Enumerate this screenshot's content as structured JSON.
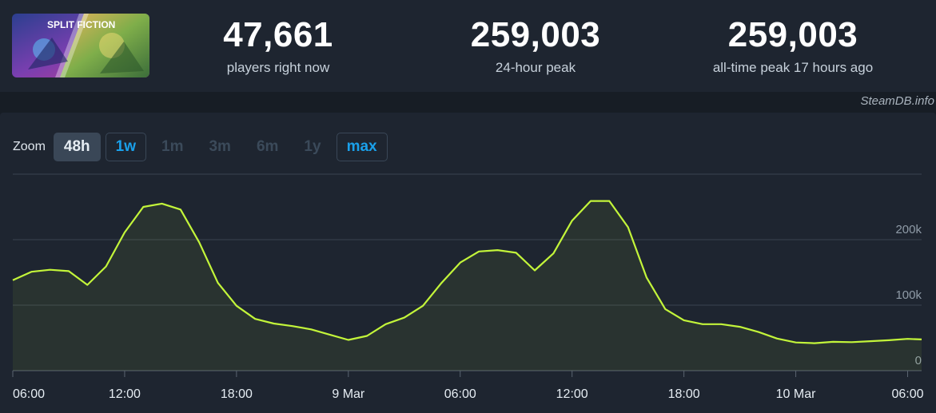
{
  "game": {
    "logo_text": "SPLIT FICTION"
  },
  "stats": [
    {
      "value": "47,661",
      "label": "players right now"
    },
    {
      "value": "259,003",
      "label": "24-hour peak"
    },
    {
      "value": "259,003",
      "label": "all-time peak 17 hours ago"
    }
  ],
  "watermark": "SteamDB.info",
  "zoom": {
    "label": "Zoom",
    "options": [
      {
        "label": "48h",
        "state": "active"
      },
      {
        "label": "1w",
        "state": "enabled"
      },
      {
        "label": "1m",
        "state": "disabled"
      },
      {
        "label": "3m",
        "state": "disabled"
      },
      {
        "label": "6m",
        "state": "disabled"
      },
      {
        "label": "1y",
        "state": "disabled"
      },
      {
        "label": "max",
        "state": "enabled"
      }
    ]
  },
  "colors": {
    "line": "#c3f53a",
    "background": "#1e2530",
    "accent": "#1aa0ea"
  },
  "chart_data": {
    "type": "area",
    "title": "",
    "xlabel": "",
    "ylabel": "",
    "ylim": [
      0,
      300000
    ],
    "yticks": [
      0,
      100000,
      200000
    ],
    "ytick_labels": [
      "0",
      "100k",
      "200k"
    ],
    "xlim": [
      0,
      48.75
    ],
    "x_tick_values": [
      0,
      6,
      12,
      18,
      24,
      30,
      36,
      42,
      48
    ],
    "x_tick_labels": [
      "06:00",
      "12:00",
      "18:00",
      "9 Mar",
      "06:00",
      "12:00",
      "18:00",
      "10 Mar",
      "06:00"
    ],
    "grid": true,
    "series": [
      {
        "values": [
          [
            0,
            138000
          ],
          [
            1,
            151000
          ],
          [
            2,
            154000
          ],
          [
            3,
            152000
          ],
          [
            4,
            131000
          ],
          [
            5,
            159000
          ],
          [
            6,
            211000
          ],
          [
            7,
            250000
          ],
          [
            8,
            255000
          ],
          [
            9,
            246000
          ],
          [
            10,
            196000
          ],
          [
            11,
            134000
          ],
          [
            12,
            99000
          ],
          [
            13,
            79000
          ],
          [
            14,
            72000
          ],
          [
            15,
            68000
          ],
          [
            16,
            63000
          ],
          [
            17,
            55000
          ],
          [
            18,
            47000
          ],
          [
            19,
            53000
          ],
          [
            20,
            71000
          ],
          [
            21,
            81000
          ],
          [
            22,
            99000
          ],
          [
            23,
            134000
          ],
          [
            24,
            165000
          ],
          [
            25,
            182000
          ],
          [
            26,
            184000
          ],
          [
            27,
            180000
          ],
          [
            28,
            153000
          ],
          [
            29,
            179000
          ],
          [
            30,
            229000
          ],
          [
            31,
            259000
          ],
          [
            32,
            259003
          ],
          [
            33,
            219000
          ],
          [
            34,
            142000
          ],
          [
            35,
            94000
          ],
          [
            36,
            77000
          ],
          [
            37,
            71000
          ],
          [
            38,
            71000
          ],
          [
            39,
            67000
          ],
          [
            40,
            59000
          ],
          [
            41,
            49000
          ],
          [
            42,
            43000
          ],
          [
            43,
            42000
          ],
          [
            44,
            44000
          ],
          [
            45,
            43500
          ],
          [
            46,
            45000
          ],
          [
            47,
            46500
          ],
          [
            48,
            48500
          ],
          [
            48.75,
            47661
          ]
        ]
      }
    ]
  }
}
